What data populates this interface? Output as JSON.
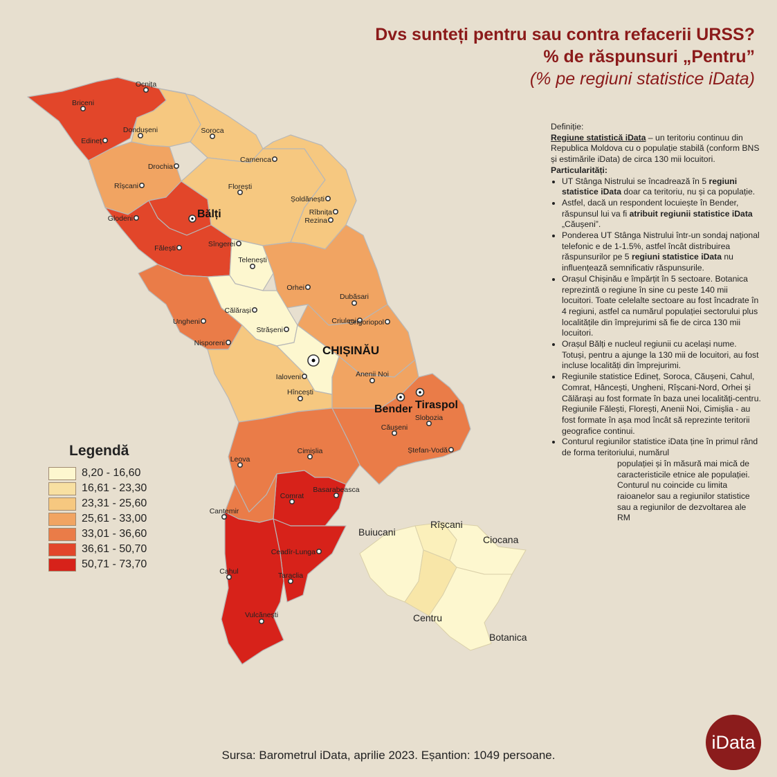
{
  "title": {
    "line1": "Dvs sunteți pentru sau contra refacerii URSS?",
    "line2": "% de răspunsuri „Pentru”",
    "line3": "(% pe regiuni statistice iData)"
  },
  "legend": {
    "title": "Legendă",
    "items": [
      {
        "range": "8,20 - 16,60",
        "color": "#fdf7cf"
      },
      {
        "range": "16,61 - 23,30",
        "color": "#f8e0a2"
      },
      {
        "range": "23,31 - 25,60",
        "color": "#f6c880"
      },
      {
        "range": "25,61 - 33,00",
        "color": "#f1a462"
      },
      {
        "range": "33,01 - 36,60",
        "color": "#ea7c48"
      },
      {
        "range": "36,61 - 50,70",
        "color": "#e2462a"
      },
      {
        "range": "50,71 - 73,70",
        "color": "#d7221a"
      }
    ]
  },
  "map": {
    "places": [
      "Ocnița",
      "Briceni",
      "Edineț",
      "Dondușeni",
      "Soroca",
      "Camenca",
      "Drochia",
      "Rîșcani",
      "Florești",
      "Șoldănești",
      "Rîbnița",
      "Glodeni",
      "Rezina",
      "Fălești",
      "Sîngerei",
      "Telenești",
      "Orhei",
      "Dubăsari",
      "Călărași",
      "Ungheni",
      "Criuleni",
      "Grigoriopol",
      "Strășeni",
      "Nisporeni",
      "Ialoveni",
      "Anenii Noi",
      "Hîncești",
      "Slobozia",
      "Căușeni",
      "Ștefan-Vodă",
      "Cimișlia",
      "Leova",
      "Comrat",
      "Basarabeasca",
      "Cantemir",
      "Ceadîr-Lunga",
      "Cahul",
      "Taraclia",
      "Vulcănești"
    ],
    "big_cities": {
      "balti": "Bălți",
      "chisinau": "CHIȘINĂU",
      "bender": "Bender",
      "tiraspol": "Tiraspol"
    },
    "chisinau_sectors": {
      "buiucani": "Buiucani",
      "riscani": "Rîșcani",
      "ciocana": "Ciocana",
      "centru": "Centru",
      "botanica": "Botanica"
    }
  },
  "info": {
    "def_label": "Definiție:",
    "def_term": "Regiune statistică iData",
    "def_text": " – un teritoriu continuu din Republica Moldova cu o populație stabilă (conform BNS și estimările iData) de circa 130 mii locuitori.",
    "part_label": "Particularități:",
    "b1a": "UT Stânga Nistrului se încadrează în 5 ",
    "b1b": "regiuni statistice iData",
    "b1c": " doar ca teritoriu, nu și ca populație.",
    "b2a": "Astfel, dacă un respondent locuiește în Bender, răspunsul lui va fi ",
    "b2b": "atribuit regiunii statistice iData",
    "b2c": " „Căușeni”.",
    "b3a": "Ponderea UT Stânga Nistrului într-un sondaj național telefonic e de 1-1.5%, astfel încât distribuirea răspunsurilor pe 5 ",
    "b3b": "regiuni statistice iData",
    "b3c": " nu influențează semnificativ răspunsurile.",
    "b4": "Orașul Chișinău e împărțit în 5 sectoare. Botanica reprezintă o regiune în sine cu peste 140 mii locuitori. Toate celelalte sectoare au fost încadrate în 4 regiuni, astfel ca numărul populației sectorului plus localitățile din împrejurimi să fie de circa 130 mii locuitori.",
    "b5": "Orașul Bălți e nucleul regiunii cu același nume. Totuși, pentru a ajunge la 130 mii de locuitori, au fost incluse localități din împrejurimi.",
    "b6": "Regiunile statistice Edineț, Soroca, Căușeni, Cahul, Comrat, Hâncești, Ungheni, Rîșcani-Nord, Orhei și Călărași au fost formate în baza unei localități-centru. Regiunile Fălești, Florești, Anenii Noi, Cimișlia - au fost formate în așa mod încât să reprezinte teritorii geografice continui.",
    "b7a": "Conturul regiunilor statistice iData ține în primul rând de forma teritoriului, numărul",
    "b7b": "populației și în măsură mai mică de caracteristicile etnice ale populației. Conturul nu coincide cu limita raioanelor sau a regiunilor statistice sau a regiunilor de dezvoltarea ale RM"
  },
  "footer": "Sursa: Barometrul iData, aprilie 2023. Eșantion: 1049 persoane.",
  "logo": "iData"
}
